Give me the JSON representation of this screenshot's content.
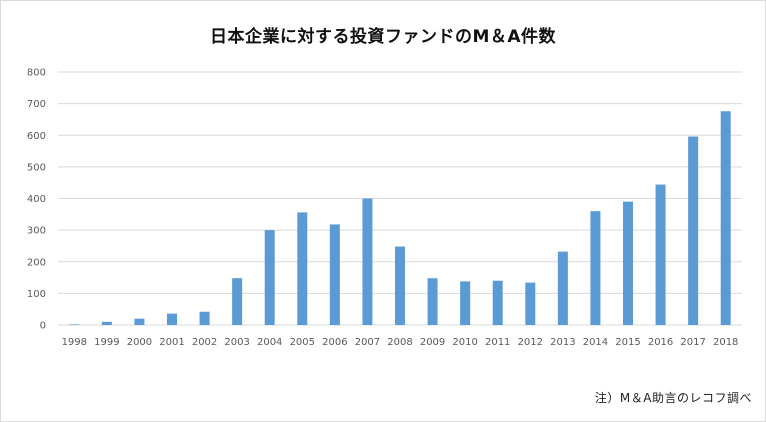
{
  "chart_data": {
    "type": "bar",
    "title": "日本企業に対する投資ファンドのM＆A件数",
    "note": "注）M＆A助言のレコフ調べ",
    "categories": [
      "1998",
      "1999",
      "2000",
      "2001",
      "2002",
      "2003",
      "2004",
      "2005",
      "2006",
      "2007",
      "2008",
      "2009",
      "2010",
      "2011",
      "2012",
      "2013",
      "2014",
      "2015",
      "2016",
      "2017",
      "2018"
    ],
    "series": [
      {
        "values": [
          2,
          10,
          20,
          36,
          42,
          148,
          300,
          356,
          318,
          400,
          248,
          148,
          138,
          140,
          134,
          232,
          360,
          390,
          444,
          596,
          676
        ]
      }
    ],
    "ylim": [
      0,
      800
    ],
    "yticks": [
      0,
      100,
      200,
      300,
      400,
      500,
      600,
      700,
      800
    ],
    "xlabel": "",
    "ylabel": "",
    "grid": true,
    "legend": "none",
    "bar_color": "#5b9bd5",
    "grid_color": "#d9d9d9"
  }
}
